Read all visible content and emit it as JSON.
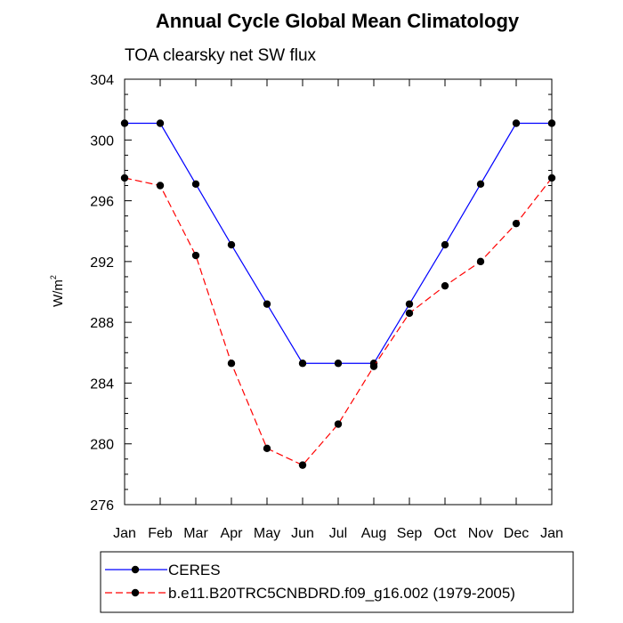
{
  "chart_data": {
    "type": "line",
    "title": "Annual Cycle Global Mean Climatology",
    "subtitle": "TOA clearsky net SW flux",
    "ylabel": "W/m",
    "ylabel_sup": "2",
    "ylim": [
      276,
      304
    ],
    "yticks": [
      276,
      280,
      284,
      288,
      292,
      296,
      300,
      304
    ],
    "ytick_labels": [
      "276",
      "280",
      "284",
      "288",
      "292",
      "296",
      "300",
      "304"
    ],
    "categories": [
      "Jan",
      "Feb",
      "Mar",
      "Apr",
      "May",
      "Jun",
      "Jul",
      "Aug",
      "Sep",
      "Oct",
      "Nov",
      "Dec",
      "Jan"
    ],
    "grid": false,
    "legend_position": "bottom",
    "series": [
      {
        "name": "CERES",
        "color": "#0000ff",
        "dash": "solid",
        "values": [
          301.1,
          301.1,
          297.1,
          293.1,
          289.2,
          285.3,
          285.3,
          285.3,
          289.2,
          293.1,
          297.1,
          301.1,
          301.1
        ]
      },
      {
        "name": "b.e11.B20TRC5CNBDRD.f09_g16.002 (1979-2005)",
        "color": "#ff0000",
        "dash": "dashed",
        "values": [
          297.5,
          297.0,
          292.4,
          285.3,
          279.7,
          278.6,
          281.3,
          285.1,
          288.6,
          290.4,
          292.0,
          294.5,
          297.5
        ]
      }
    ]
  }
}
